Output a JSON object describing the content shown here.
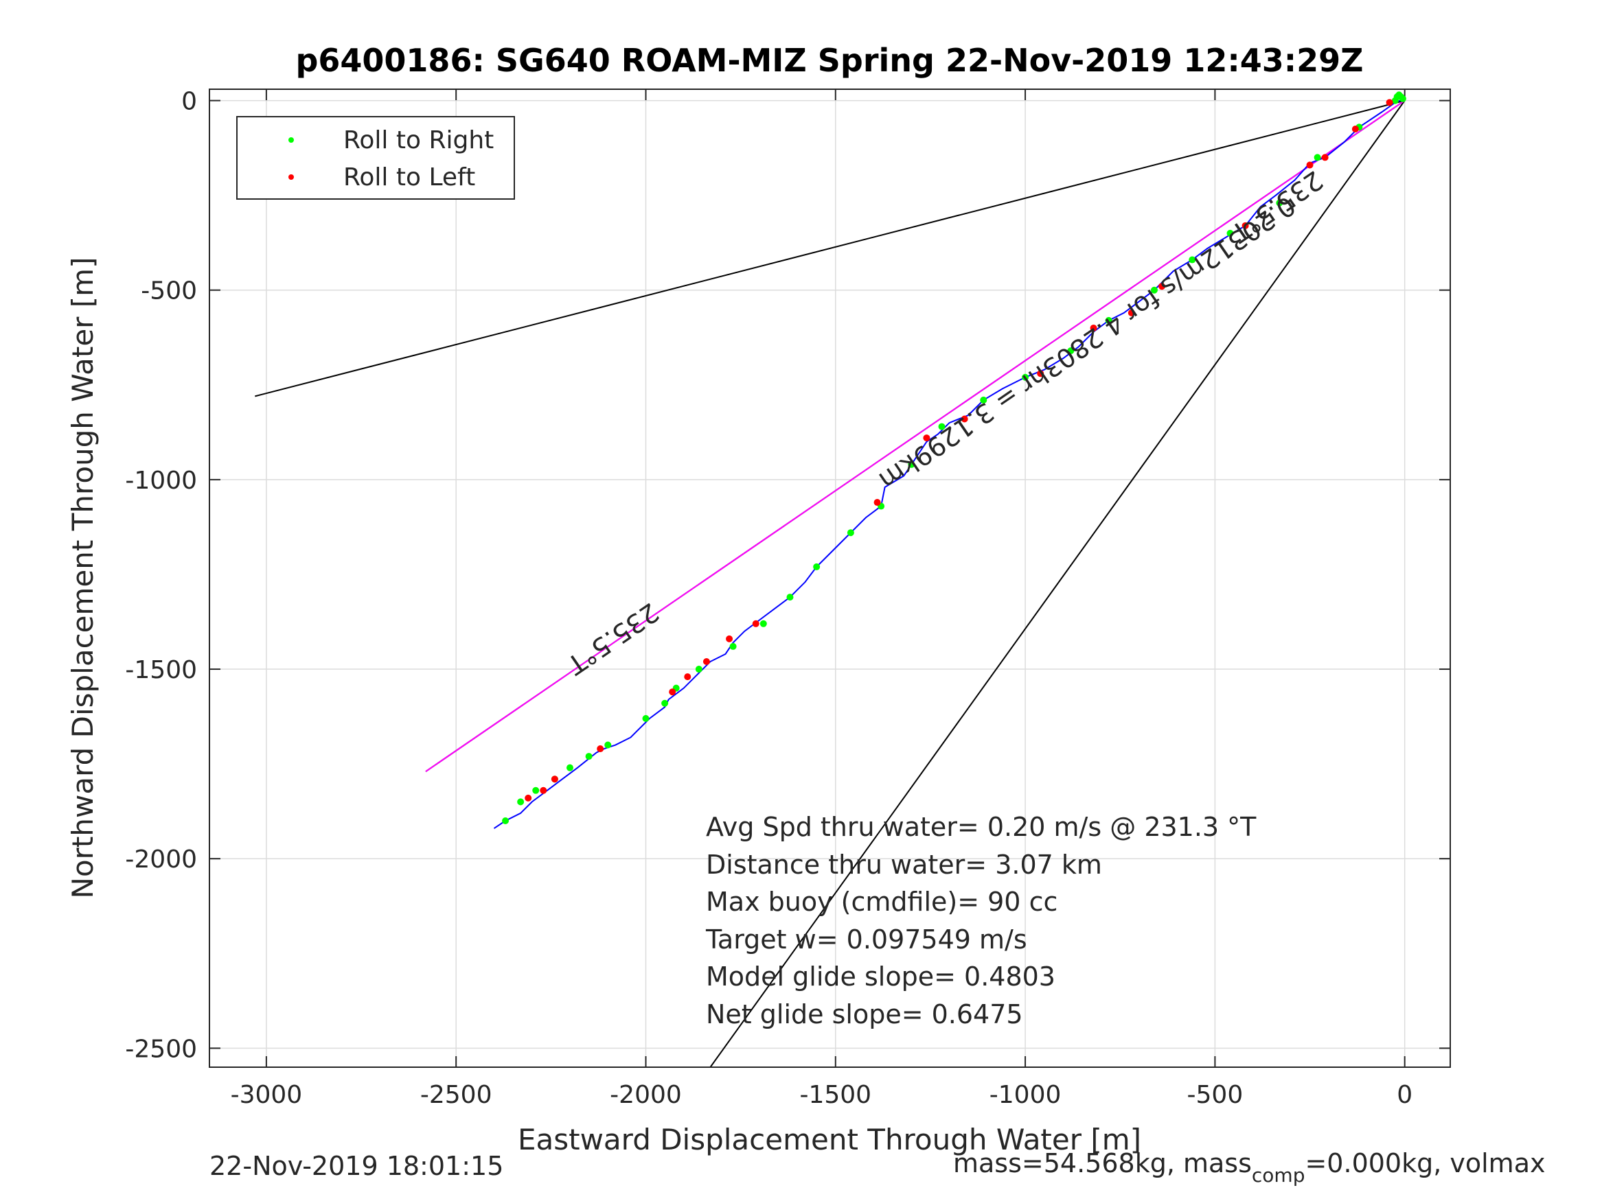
{
  "chart_data": {
    "type": "scatter",
    "title": "p6400186: SG640 ROAM-MIZ Spring 22-Nov-2019 12:43:29Z",
    "xlabel": "Eastward Displacement Through Water [m]",
    "ylabel": "Northward Displacement Through Water [m]",
    "xlim": [
      -3150,
      120
    ],
    "ylim": [
      -2550,
      30
    ],
    "xticks": [
      -3000,
      -2500,
      -2000,
      -1500,
      -1000,
      -500,
      0
    ],
    "yticks": [
      0,
      -500,
      -1000,
      -1500,
      -2000,
      -2500
    ],
    "grid": true,
    "legend_position": "top-left",
    "legend": [
      {
        "label": "Roll to Right",
        "color": "#00ff00"
      },
      {
        "label": "Roll to Left",
        "color": "#ff0000"
      }
    ],
    "reference_lines": [
      {
        "from": [
          0,
          0
        ],
        "to": [
          -3030,
          -780
        ],
        "color": "#000000"
      },
      {
        "from": [
          0,
          0
        ],
        "to": [
          -1830,
          -2550
        ],
        "color": "#000000"
      },
      {
        "from": [
          0,
          0
        ],
        "to": [
          -2580,
          -1770
        ],
        "color": "#000000"
      }
    ],
    "heading_line": {
      "from": [
        0,
        0
      ],
      "to": [
        -2580,
        -1770
      ],
      "color": "#ff00ff"
    },
    "track": {
      "color": "#0000ff",
      "points": [
        [
          0,
          5
        ],
        [
          -25,
          -5
        ],
        [
          -60,
          -30
        ],
        [
          -120,
          -70
        ],
        [
          -160,
          -110
        ],
        [
          -210,
          -150
        ],
        [
          -250,
          -165
        ],
        [
          -290,
          -210
        ],
        [
          -340,
          -250
        ],
        [
          -380,
          -280
        ],
        [
          -420,
          -330
        ],
        [
          -470,
          -360
        ],
        [
          -520,
          -390
        ],
        [
          -560,
          -420
        ],
        [
          -610,
          -450
        ],
        [
          -660,
          -500
        ],
        [
          -700,
          -530
        ],
        [
          -740,
          -560
        ],
        [
          -780,
          -580
        ],
        [
          -820,
          -610
        ],
        [
          -860,
          -650
        ],
        [
          -900,
          -680
        ],
        [
          -950,
          -710
        ],
        [
          -1000,
          -730
        ],
        [
          -1060,
          -760
        ],
        [
          -1110,
          -790
        ],
        [
          -1150,
          -830
        ],
        [
          -1200,
          -850
        ],
        [
          -1230,
          -880
        ],
        [
          -1260,
          -900
        ],
        [
          -1300,
          -960
        ],
        [
          -1320,
          -990
        ],
        [
          -1370,
          -1020
        ],
        [
          -1380,
          -1070
        ],
        [
          -1420,
          -1100
        ],
        [
          -1470,
          -1150
        ],
        [
          -1520,
          -1200
        ],
        [
          -1550,
          -1230
        ],
        [
          -1580,
          -1270
        ],
        [
          -1620,
          -1310
        ],
        [
          -1660,
          -1340
        ],
        [
          -1700,
          -1370
        ],
        [
          -1740,
          -1400
        ],
        [
          -1770,
          -1430
        ],
        [
          -1790,
          -1460
        ],
        [
          -1830,
          -1480
        ],
        [
          -1870,
          -1520
        ],
        [
          -1900,
          -1550
        ],
        [
          -1940,
          -1580
        ],
        [
          -1950,
          -1600
        ],
        [
          -1990,
          -1630
        ],
        [
          -2040,
          -1680
        ],
        [
          -2080,
          -1700
        ],
        [
          -2110,
          -1710
        ],
        [
          -2130,
          -1720
        ],
        [
          -2180,
          -1760
        ],
        [
          -2220,
          -1790
        ],
        [
          -2260,
          -1820
        ],
        [
          -2300,
          -1850
        ],
        [
          -2330,
          -1880
        ],
        [
          -2370,
          -1900
        ],
        [
          -2400,
          -1920
        ]
      ]
    },
    "roll_right_points": [
      [
        -5,
        5
      ],
      [
        -10,
        10
      ],
      [
        -15,
        15
      ],
      [
        -20,
        10
      ],
      [
        -25,
        0
      ],
      [
        -120,
        -70
      ],
      [
        -230,
        -150
      ],
      [
        -330,
        -270
      ],
      [
        -460,
        -350
      ],
      [
        -560,
        -420
      ],
      [
        -660,
        -500
      ],
      [
        -780,
        -580
      ],
      [
        -880,
        -660
      ],
      [
        -1000,
        -730
      ],
      [
        -1110,
        -790
      ],
      [
        -1220,
        -860
      ],
      [
        -1300,
        -960
      ],
      [
        -1380,
        -1070
      ],
      [
        -1460,
        -1140
      ],
      [
        -1550,
        -1230
      ],
      [
        -1620,
        -1310
      ],
      [
        -1690,
        -1380
      ],
      [
        -1770,
        -1440
      ],
      [
        -1860,
        -1500
      ],
      [
        -1920,
        -1550
      ],
      [
        -1950,
        -1590
      ],
      [
        -2000,
        -1630
      ],
      [
        -2100,
        -1700
      ],
      [
        -2150,
        -1730
      ],
      [
        -2200,
        -1760
      ],
      [
        -2240,
        -1790
      ],
      [
        -2290,
        -1820
      ],
      [
        -2330,
        -1850
      ],
      [
        -2370,
        -1900
      ]
    ],
    "roll_left_points": [
      [
        -40,
        -5
      ],
      [
        -130,
        -75
      ],
      [
        -210,
        -150
      ],
      [
        -250,
        -170
      ],
      [
        -420,
        -330
      ],
      [
        -640,
        -490
      ],
      [
        -720,
        -560
      ],
      [
        -820,
        -600
      ],
      [
        -960,
        -720
      ],
      [
        -1160,
        -840
      ],
      [
        -1260,
        -890
      ],
      [
        -1390,
        -1060
      ],
      [
        -1710,
        -1380
      ],
      [
        -1780,
        -1420
      ],
      [
        -1840,
        -1480
      ],
      [
        -1890,
        -1520
      ],
      [
        -1930,
        -1560
      ],
      [
        -2120,
        -1710
      ],
      [
        -2240,
        -1790
      ],
      [
        -2270,
        -1820
      ],
      [
        -2310,
        -1840
      ]
    ],
    "annotations": [
      {
        "text": "235.5°T",
        "at": [
          -350,
          -260
        ],
        "rotate_deg": 145.6
      },
      {
        "text": "235.5°T",
        "at": [
          -2100,
          -1400
        ],
        "rotate_deg": 145.6
      },
      {
        "text": "0.20312m/s for 4.2803hr = 3.1299km",
        "at": [
          -850,
          -620
        ],
        "rotate_deg": 145.6
      }
    ],
    "stats_text": [
      "Avg Spd thru water=  0.20 m/s @ 231.3 °T",
      "Distance thru water=  3.07 km",
      "Max buoy (cmdfile)= 90 cc",
      "Target w= 0.097549 m/s",
      "Model glide slope= 0.4803",
      "Net glide slope= 0.6475"
    ]
  },
  "footer": {
    "timestamp": "22-Nov-2019 18:01:15",
    "mass_prefix": "mass=54.568kg, mass",
    "mass_subscript": "comp",
    "mass_suffix": "=0.000kg, volmax"
  }
}
